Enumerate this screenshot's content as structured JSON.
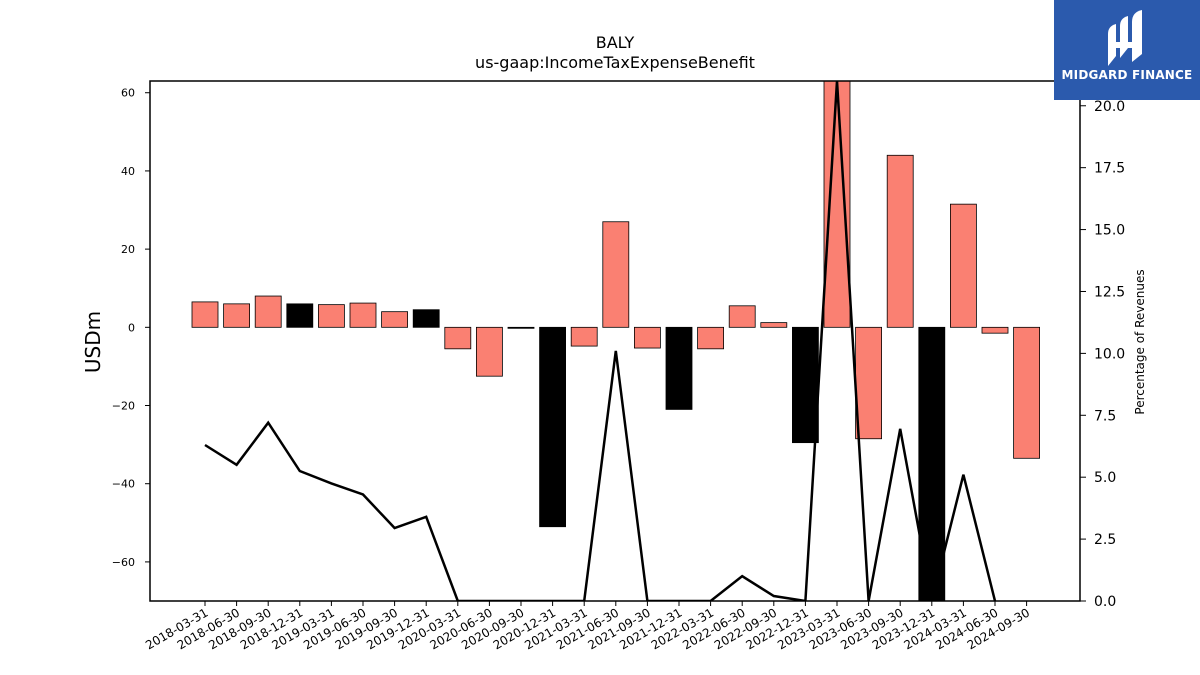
{
  "chart_data": {
    "type": "bar",
    "title": "BALY",
    "subtitle": "us-gaap:IncomeTaxExpenseBenefit",
    "ylabel": "USDm",
    "ylabel_right": "Percentage of Revenues",
    "ylim": [
      -70,
      63
    ],
    "ylim_right": [
      0,
      21
    ],
    "yticks": [
      -60,
      -40,
      -20,
      0,
      20,
      40,
      60
    ],
    "yticks_right": [
      0.0,
      2.5,
      5.0,
      7.5,
      10.0,
      12.5,
      15.0,
      17.5,
      20.0
    ],
    "grid": false,
    "categories": [
      "2018-03-31",
      "2018-06-30",
      "2018-09-30",
      "2018-12-31",
      "2019-03-31",
      "2019-06-30",
      "2019-09-30",
      "2019-12-31",
      "2020-03-31",
      "2020-06-30",
      "2020-09-30",
      "2020-12-31",
      "2021-03-31",
      "2021-06-30",
      "2021-09-30",
      "2021-12-31",
      "2022-03-31",
      "2022-06-30",
      "2022-09-30",
      "2022-12-31",
      "2023-03-31",
      "2023-06-30",
      "2023-09-30",
      "2023-12-31",
      "2024-03-31",
      "2024-06-30",
      "2024-09-30"
    ],
    "series": [
      {
        "kind": "bar",
        "values": [
          6.5,
          6.0,
          8.0,
          6.0,
          5.8,
          6.2,
          4.0,
          4.5,
          -5.5,
          -12.5,
          -0.2,
          -51.0,
          -4.8,
          27.0,
          -5.3,
          -21.0,
          -5.5,
          5.5,
          1.2,
          -29.5,
          63.0,
          -28.5,
          44.0,
          -70.0,
          31.5,
          -1.5,
          -33.5
        ],
        "colors": [
          "#fa8072",
          "#fa8072",
          "#fa8072",
          "#000000",
          "#fa8072",
          "#fa8072",
          "#fa8072",
          "#000000",
          "#fa8072",
          "#fa8072",
          "#000000",
          "#000000",
          "#fa8072",
          "#fa8072",
          "#fa8072",
          "#000000",
          "#fa8072",
          "#fa8072",
          "#fa8072",
          "#000000",
          "#fa8072",
          "#fa8072",
          "#fa8072",
          "#000000",
          "#fa8072",
          "#fa8072",
          "#fa8072"
        ]
      },
      {
        "kind": "line",
        "axis": "right",
        "color": "#000000",
        "values": [
          6.3,
          5.5,
          7.2,
          5.25,
          4.75,
          4.3,
          2.95,
          3.4,
          0,
          0,
          0,
          0,
          0,
          10.1,
          0,
          0,
          0,
          1.0,
          0.2,
          0,
          21.0,
          0,
          6.95,
          0,
          5.1,
          0,
          null
        ]
      }
    ]
  },
  "logo": {
    "text": "MIDGARD FINANCE",
    "bg_color": "#2b5aad"
  }
}
